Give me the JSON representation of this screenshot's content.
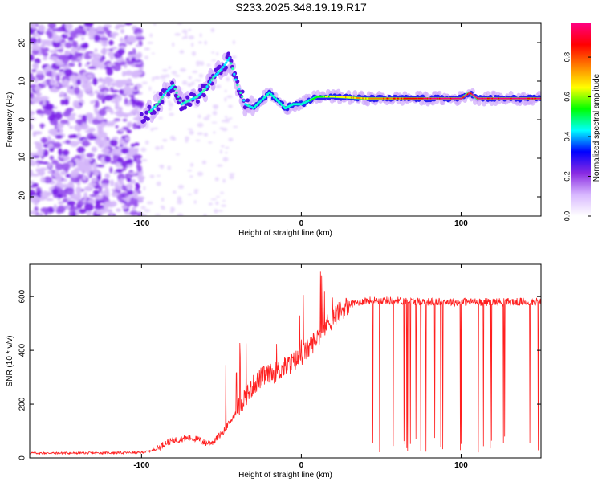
{
  "title": "S233.2025.348.19.19.R17",
  "chart_data": [
    {
      "type": "heatmap",
      "title": "S233.2025.348.19.19.R17",
      "xlabel": "Height of straight line (km)",
      "ylabel": "Frequency (Hz)",
      "xlim": [
        -170,
        150
      ],
      "ylim": [
        -25,
        25
      ],
      "xticks": [
        -100,
        0,
        100
      ],
      "xtick_labels": [
        "-100",
        "0",
        "100"
      ],
      "yticks": [
        -20,
        -10,
        0,
        10,
        20
      ],
      "ytick_labels": [
        "-20",
        "-10",
        "0",
        "10",
        "20"
      ],
      "colorbar": {
        "label": "Normalized spectral amplitude",
        "range": [
          0,
          0.97
        ],
        "ticks": [
          0.0,
          0.2,
          0.4,
          0.6,
          0.8
        ],
        "tick_labels": [
          "0.0",
          "0.2",
          "0.4",
          "0.6",
          "0.8"
        ],
        "colors": [
          "#ffffff",
          "#d8b8ff",
          "#8a2be2",
          "#0000ff",
          "#00ffff",
          "#00ff00",
          "#ffff00",
          "#ff8000",
          "#ff0000",
          "#ff0080"
        ]
      },
      "ridge": {
        "x": [
          -100,
          -95,
          -90,
          -85,
          -80,
          -75,
          -70,
          -65,
          -60,
          -55,
          -50,
          -45,
          -40,
          -35,
          -30,
          -25,
          -20,
          -15,
          -10,
          -5,
          0,
          10,
          20,
          40,
          60,
          80,
          100,
          105,
          110,
          130,
          150
        ],
        "y": [
          0,
          2,
          4,
          7,
          9,
          4,
          5,
          6,
          8,
          11,
          13,
          16,
          9,
          4,
          3,
          5,
          7,
          5,
          3,
          4,
          4,
          6,
          6,
          5.5,
          5.5,
          5.5,
          5.5,
          7,
          5.5,
          5.5,
          5.5
        ]
      }
    },
    {
      "type": "line",
      "xlabel": "Height of straight line (km)",
      "ylabel": "SNR (10 * v/v)",
      "xlim": [
        -170,
        150
      ],
      "ylim": [
        0,
        720
      ],
      "xticks": [
        -100,
        0,
        100
      ],
      "xtick_labels": [
        "-100",
        "0",
        "100"
      ],
      "yticks": [
        0,
        200,
        400,
        600
      ],
      "ytick_labels": [
        "0",
        "200",
        "400",
        "600"
      ],
      "color": "#ff2020",
      "series": [
        {
          "x": [
            -170,
            -150,
            -130,
            -110,
            -100,
            -95,
            -90,
            -85,
            -80,
            -75,
            -70,
            -65,
            -60,
            -55,
            -50,
            -45,
            -40,
            -35,
            -30,
            -25,
            -20,
            -15,
            -10,
            -5,
            0,
            5,
            10,
            15,
            20,
            25,
            30,
            40,
            50,
            60,
            80,
            100,
            120,
            140,
            150
          ],
          "values": [
            18,
            18,
            18,
            19,
            20,
            25,
            35,
            55,
            65,
            70,
            75,
            70,
            55,
            60,
            90,
            130,
            180,
            230,
            270,
            300,
            310,
            320,
            340,
            355,
            380,
            410,
            450,
            490,
            520,
            550,
            570,
            585,
            585,
            585,
            580,
            580,
            580,
            580,
            580
          ]
        }
      ]
    }
  ]
}
